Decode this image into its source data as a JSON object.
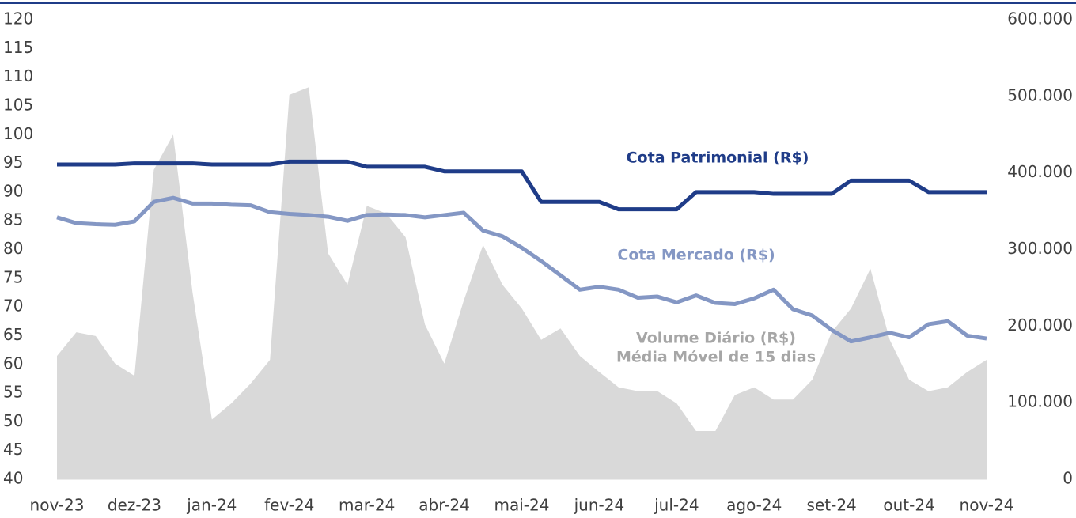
{
  "chart_data": {
    "type": "line",
    "categories": [
      "nov-23",
      null,
      null,
      null,
      "dez-23",
      null,
      null,
      null,
      "jan-24",
      null,
      null,
      null,
      "fev-24",
      null,
      null,
      null,
      "mar-24",
      null,
      null,
      null,
      "abr-24",
      null,
      null,
      null,
      "mai-24",
      null,
      null,
      null,
      "jun-24",
      null,
      null,
      null,
      "jul-24",
      null,
      null,
      null,
      "ago-24",
      null,
      null,
      null,
      "set-24",
      null,
      null,
      null,
      "out-24",
      null,
      null,
      null,
      "nov-24"
    ],
    "series": [
      {
        "name": "Volume Diário (R$)",
        "type": "area",
        "axis": "y2",
        "color": "#d9d9d9",
        "values": [
          161000,
          192000,
          187000,
          151000,
          135000,
          404000,
          450000,
          244000,
          78000,
          99000,
          125000,
          156000,
          502000,
          512000,
          295000,
          254000,
          357000,
          347000,
          316000,
          202000,
          151000,
          233000,
          306000,
          254000,
          223000,
          182000,
          197000,
          161000,
          140000,
          120000,
          115000,
          115000,
          99000,
          63000,
          63000,
          110000,
          120000,
          104000,
          104000,
          130000,
          192000,
          223000,
          275000,
          182000,
          130000,
          115000,
          120000,
          140000,
          156000
        ]
      },
      {
        "name": "Cota Mercado (R$)",
        "type": "line",
        "color": "#8497c4",
        "values": [
          85.6,
          84.6,
          84.4,
          84.3,
          84.9,
          88.3,
          89.0,
          88.0,
          88.0,
          87.8,
          87.7,
          86.5,
          86.2,
          86.0,
          85.7,
          85.0,
          86.0,
          86.1,
          86.0,
          85.6,
          86.0,
          86.4,
          83.3,
          82.3,
          80.3,
          78.0,
          75.5,
          73.0,
          73.5,
          73.0,
          71.6,
          71.8,
          70.8,
          72.0,
          70.7,
          70.5,
          71.5,
          73.0,
          69.6,
          68.5,
          66.0,
          64.0,
          64.7,
          65.5,
          64.7,
          67.0,
          67.5,
          65.0,
          64.5
        ]
      },
      {
        "name": "Cota Patrimonial (R$)",
        "type": "line",
        "color": "#1f3c88",
        "values": [
          94.8,
          94.8,
          94.8,
          94.8,
          95.0,
          95.0,
          95.0,
          95.0,
          94.8,
          94.8,
          94.8,
          94.8,
          95.3,
          95.3,
          95.3,
          95.3,
          94.4,
          94.4,
          94.4,
          94.4,
          93.6,
          93.6,
          93.6,
          93.6,
          93.6,
          88.3,
          88.3,
          88.3,
          88.3,
          87.0,
          87.0,
          87.0,
          87.0,
          90.0,
          90.0,
          90.0,
          90.0,
          89.7,
          89.7,
          89.7,
          89.7,
          92.0,
          92.0,
          92.0,
          92.0,
          90.0,
          90.0,
          90.0,
          90.0
        ]
      }
    ],
    "annotations": [
      "Cota Patrimonial (R$)",
      "Cota Mercado (R$)",
      "Volume Diário (R$)",
      "Média Móvel de 15 dias"
    ],
    "ylim": [
      40,
      120
    ],
    "yticks": [
      40,
      45,
      50,
      55,
      60,
      65,
      70,
      75,
      80,
      85,
      90,
      95,
      100,
      105,
      110,
      115,
      120
    ],
    "y2lim": [
      0,
      600000
    ],
    "y2ticks": [
      0,
      {
        "value": 100000,
        "label": "100.000"
      },
      {
        "value": 200000,
        "label": "200.000"
      },
      {
        "value": 300000,
        "label": "300.000"
      },
      {
        "value": 400000,
        "label": "400.000"
      },
      {
        "value": 500000,
        "label": "500.000"
      },
      {
        "value": 600000,
        "label": "600.000"
      }
    ]
  }
}
